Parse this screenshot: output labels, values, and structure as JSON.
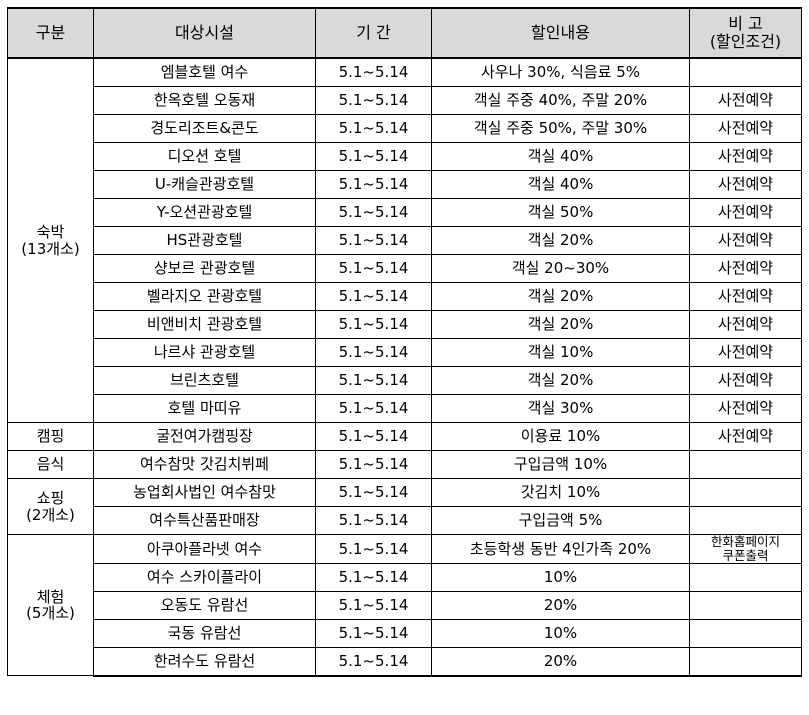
{
  "header": {
    "category": "구분",
    "facility": "대상시설",
    "period": "기 간",
    "discount": "할인내용",
    "note_line1": "비 고",
    "note_line2": "(할인조건)"
  },
  "groups": [
    {
      "category": "숙박",
      "count": "(13개소)",
      "rows": [
        {
          "facility": "엠블호텔 여수",
          "period": "5.1~5.14",
          "discount": "사우나 30%, 식음료 5%",
          "note": ""
        },
        {
          "facility": "한옥호텔 오동재",
          "period": "5.1~5.14",
          "discount": "객실 주중 40%, 주말 20%",
          "note": "사전예약"
        },
        {
          "facility": "경도리조트&콘도",
          "period": "5.1~5.14",
          "discount": "객실 주중 50%, 주말 30%",
          "note": "사전예약"
        },
        {
          "facility": "디오션 호텔",
          "period": "5.1~5.14",
          "discount": "객실 40%",
          "note": "사전예약"
        },
        {
          "facility": "U-캐슬관광호텔",
          "period": "5.1~5.14",
          "discount": "객실 40%",
          "note": "사전예약"
        },
        {
          "facility": "Y-오션관광호텔",
          "period": "5.1~5.14",
          "discount": "객실 50%",
          "note": "사전예약"
        },
        {
          "facility": "HS관광호텔",
          "period": "5.1~5.14",
          "discount": "객실 20%",
          "note": "사전예약"
        },
        {
          "facility": "샹보르 관광호텔",
          "period": "5.1~5.14",
          "discount": "객실 20~30%",
          "note": "사전예약"
        },
        {
          "facility": "벨라지오 관광호텔",
          "period": "5.1~5.14",
          "discount": "객실 20%",
          "note": "사전예약"
        },
        {
          "facility": "비앤비치 관광호텔",
          "period": "5.1~5.14",
          "discount": "객실 20%",
          "note": "사전예약"
        },
        {
          "facility": "나르샤 관광호텔",
          "period": "5.1~5.14",
          "discount": "객실 10%",
          "note": "사전예약"
        },
        {
          "facility": "브린츠호텔",
          "period": "5.1~5.14",
          "discount": "객실 20%",
          "note": "사전예약"
        },
        {
          "facility": "호텔 마띠유",
          "period": "5.1~5.14",
          "discount": "객실 30%",
          "note": "사전예약"
        }
      ]
    },
    {
      "category": "캠핑",
      "count": "",
      "rows": [
        {
          "facility": "굴전여가캠핑장",
          "period": "5.1~5.14",
          "discount": "이용료 10%",
          "note": "사전예약"
        }
      ]
    },
    {
      "category": "음식",
      "count": "",
      "rows": [
        {
          "facility": "여수참맛 갓김치뷔페",
          "period": "5.1~5.14",
          "discount": "구입금액 10%",
          "note": ""
        }
      ]
    },
    {
      "category": "쇼핑",
      "count": "(2개소)",
      "rows": [
        {
          "facility": "농업회사법인 여수참맛",
          "period": "5.1~5.14",
          "discount": "갓김치 10%",
          "note": ""
        },
        {
          "facility": "여수특산품판매장",
          "period": "5.1~5.14",
          "discount": "구입금액 5%",
          "note": ""
        }
      ]
    },
    {
      "category": "체험",
      "count": "(5개소)",
      "rows": [
        {
          "facility": "아쿠아플라넷 여수",
          "period": "5.1~5.14",
          "discount": "초등학생 동반 4인가족 20%",
          "note": "한화홈페이지\n쿠폰출력"
        },
        {
          "facility": "여수 스카이플라이",
          "period": "5.1~5.14",
          "discount": "10%",
          "note": ""
        },
        {
          "facility": "오동도 유람선",
          "period": "5.1~5.14",
          "discount": "20%",
          "note": ""
        },
        {
          "facility": "국동 유람선",
          "period": "5.1~5.14",
          "discount": "10%",
          "note": ""
        },
        {
          "facility": "한려수도 유람선",
          "period": "5.1~5.14",
          "discount": "20%",
          "note": ""
        }
      ]
    }
  ]
}
